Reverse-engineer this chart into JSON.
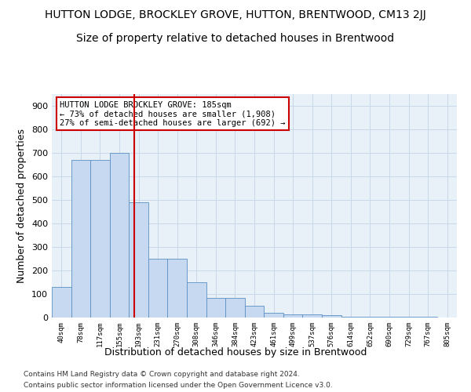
{
  "title": "HUTTON LODGE, BROCKLEY GROVE, HUTTON, BRENTWOOD, CM13 2JJ",
  "subtitle": "Size of property relative to detached houses in Brentwood",
  "xlabel": "Distribution of detached houses by size in Brentwood",
  "ylabel": "Number of detached properties",
  "bin_labels": [
    "40sqm",
    "78sqm",
    "117sqm",
    "155sqm",
    "193sqm",
    "231sqm",
    "270sqm",
    "308sqm",
    "346sqm",
    "384sqm",
    "423sqm",
    "461sqm",
    "499sqm",
    "537sqm",
    "576sqm",
    "614sqm",
    "652sqm",
    "690sqm",
    "729sqm",
    "767sqm",
    "805sqm"
  ],
  "bar_values": [
    130,
    670,
    670,
    700,
    490,
    250,
    250,
    150,
    85,
    85,
    50,
    20,
    15,
    15,
    10,
    5,
    5,
    5,
    5,
    5,
    0
  ],
  "bar_color": "#c6d9f0",
  "bar_edge_color": "#5a8fc4",
  "annotation_text": "HUTTON LODGE BROCKLEY GROVE: 185sqm\n← 73% of detached houses are smaller (1,908)\n27% of semi-detached houses are larger (692) →",
  "annotation_box_color": "#ffffff",
  "annotation_box_edge_color": "#cc0000",
  "vline_color": "#cc0000",
  "ylim": [
    0,
    950
  ],
  "yticks": [
    0,
    100,
    200,
    300,
    400,
    500,
    600,
    700,
    800,
    900
  ],
  "grid_color": "#c8d8e8",
  "background_color": "#e8f0f8",
  "footer_line1": "Contains HM Land Registry data © Crown copyright and database right 2024.",
  "footer_line2": "Contains public sector information licensed under the Open Government Licence v3.0.",
  "title_fontsize": 10,
  "subtitle_fontsize": 10,
  "xlabel_fontsize": 9,
  "ylabel_fontsize": 9
}
